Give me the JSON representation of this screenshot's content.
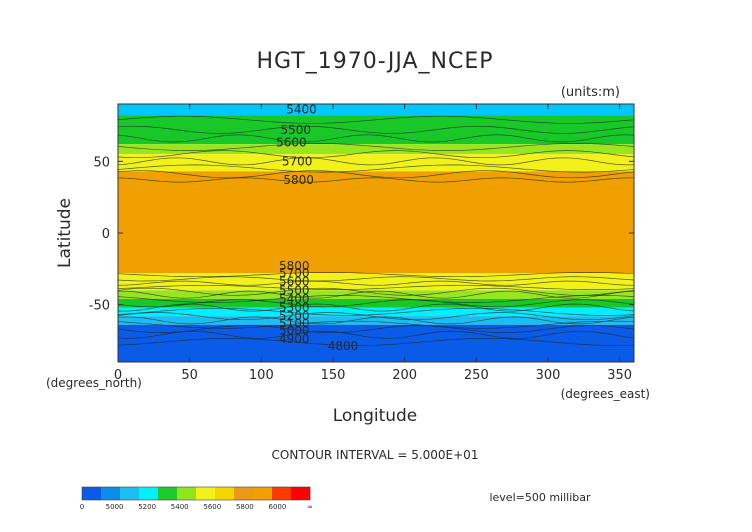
{
  "chart_data": {
    "type": "heatmap",
    "title": "HGT_1970-JJA_NCEP",
    "units_label": "(units:m)",
    "xlabel": "Longitude",
    "ylabel": "Latitude",
    "x_unit_label": "(degrees_east)",
    "y_unit_label": "(degrees_north)",
    "xlim": [
      0,
      360
    ],
    "ylim": [
      -90,
      90
    ],
    "x_ticks": [
      0,
      50,
      100,
      150,
      200,
      250,
      300,
      350
    ],
    "y_ticks": [
      50,
      0,
      -50
    ],
    "contour_interval_text": "CONTOUR INTERVAL = 5.000E+01",
    "level_text": "level=500 millibar",
    "colorbar": {
      "tick_labels": [
        "0",
        "5000",
        "5200",
        "5400",
        "5600",
        "5800",
        "6000",
        "∞"
      ],
      "colors": [
        "#0a5be8",
        "#0a8fe8",
        "#19bff0",
        "#00f0ff",
        "#1ecb2c",
        "#8fe61a",
        "#f2f21a",
        "#f2d700",
        "#ec9a15",
        "#f0a000",
        "#ff3a00",
        "#ff0000"
      ]
    },
    "lat_bands": [
      {
        "lat_from": 90,
        "lat_to": 82,
        "color": "#00c8ff"
      },
      {
        "lat_from": 82,
        "lat_to": 62,
        "color": "#18c828"
      },
      {
        "lat_from": 62,
        "lat_to": 55,
        "color": "#9ae61e"
      },
      {
        "lat_from": 55,
        "lat_to": 43,
        "color": "#f2f21a"
      },
      {
        "lat_from": 43,
        "lat_to": -28,
        "color": "#f0a000"
      },
      {
        "lat_from": -28,
        "lat_to": -40,
        "color": "#f2f21a"
      },
      {
        "lat_from": -40,
        "lat_to": -46,
        "color": "#9ae61e"
      },
      {
        "lat_from": -46,
        "lat_to": -52,
        "color": "#18c828"
      },
      {
        "lat_from": -52,
        "lat_to": -58,
        "color": "#00f0ff"
      },
      {
        "lat_from": -58,
        "lat_to": -64,
        "color": "#19bff0"
      },
      {
        "lat_from": -64,
        "lat_to": -90,
        "color": "#0a5be8"
      }
    ],
    "contour_lines_lat": [
      79,
      72,
      66,
      60,
      55,
      50,
      45,
      41,
      37,
      -29,
      -32,
      -35,
      -38,
      -41,
      -43,
      -46,
      -49,
      -52,
      -55,
      -58,
      -61,
      -64,
      -67,
      -71,
      -76
    ],
    "contour_labels": [
      {
        "text": "5400",
        "lon": 128,
        "lat": 86
      },
      {
        "text": "5500",
        "lon": 124,
        "lat": 72
      },
      {
        "text": "5600",
        "lon": 121,
        "lat": 63
      },
      {
        "text": "5700",
        "lon": 125,
        "lat": 50
      },
      {
        "text": "5800",
        "lon": 126,
        "lat": 37
      },
      {
        "text": "5800",
        "lon": 123,
        "lat": -23
      },
      {
        "text": "5700",
        "lon": 123,
        "lat": -28
      },
      {
        "text": "5600",
        "lon": 123,
        "lat": -34
      },
      {
        "text": "5500",
        "lon": 123,
        "lat": -40
      },
      {
        "text": "5400",
        "lon": 123,
        "lat": -46
      },
      {
        "text": "5300",
        "lon": 123,
        "lat": -52
      },
      {
        "text": "5200",
        "lon": 123,
        "lat": -58
      },
      {
        "text": "5100",
        "lon": 123,
        "lat": -63
      },
      {
        "text": "5000",
        "lon": 123,
        "lat": -68
      },
      {
        "text": "4900",
        "lon": 123,
        "lat": -74
      },
      {
        "text": "4800",
        "lon": 157,
        "lat": -79
      }
    ]
  }
}
